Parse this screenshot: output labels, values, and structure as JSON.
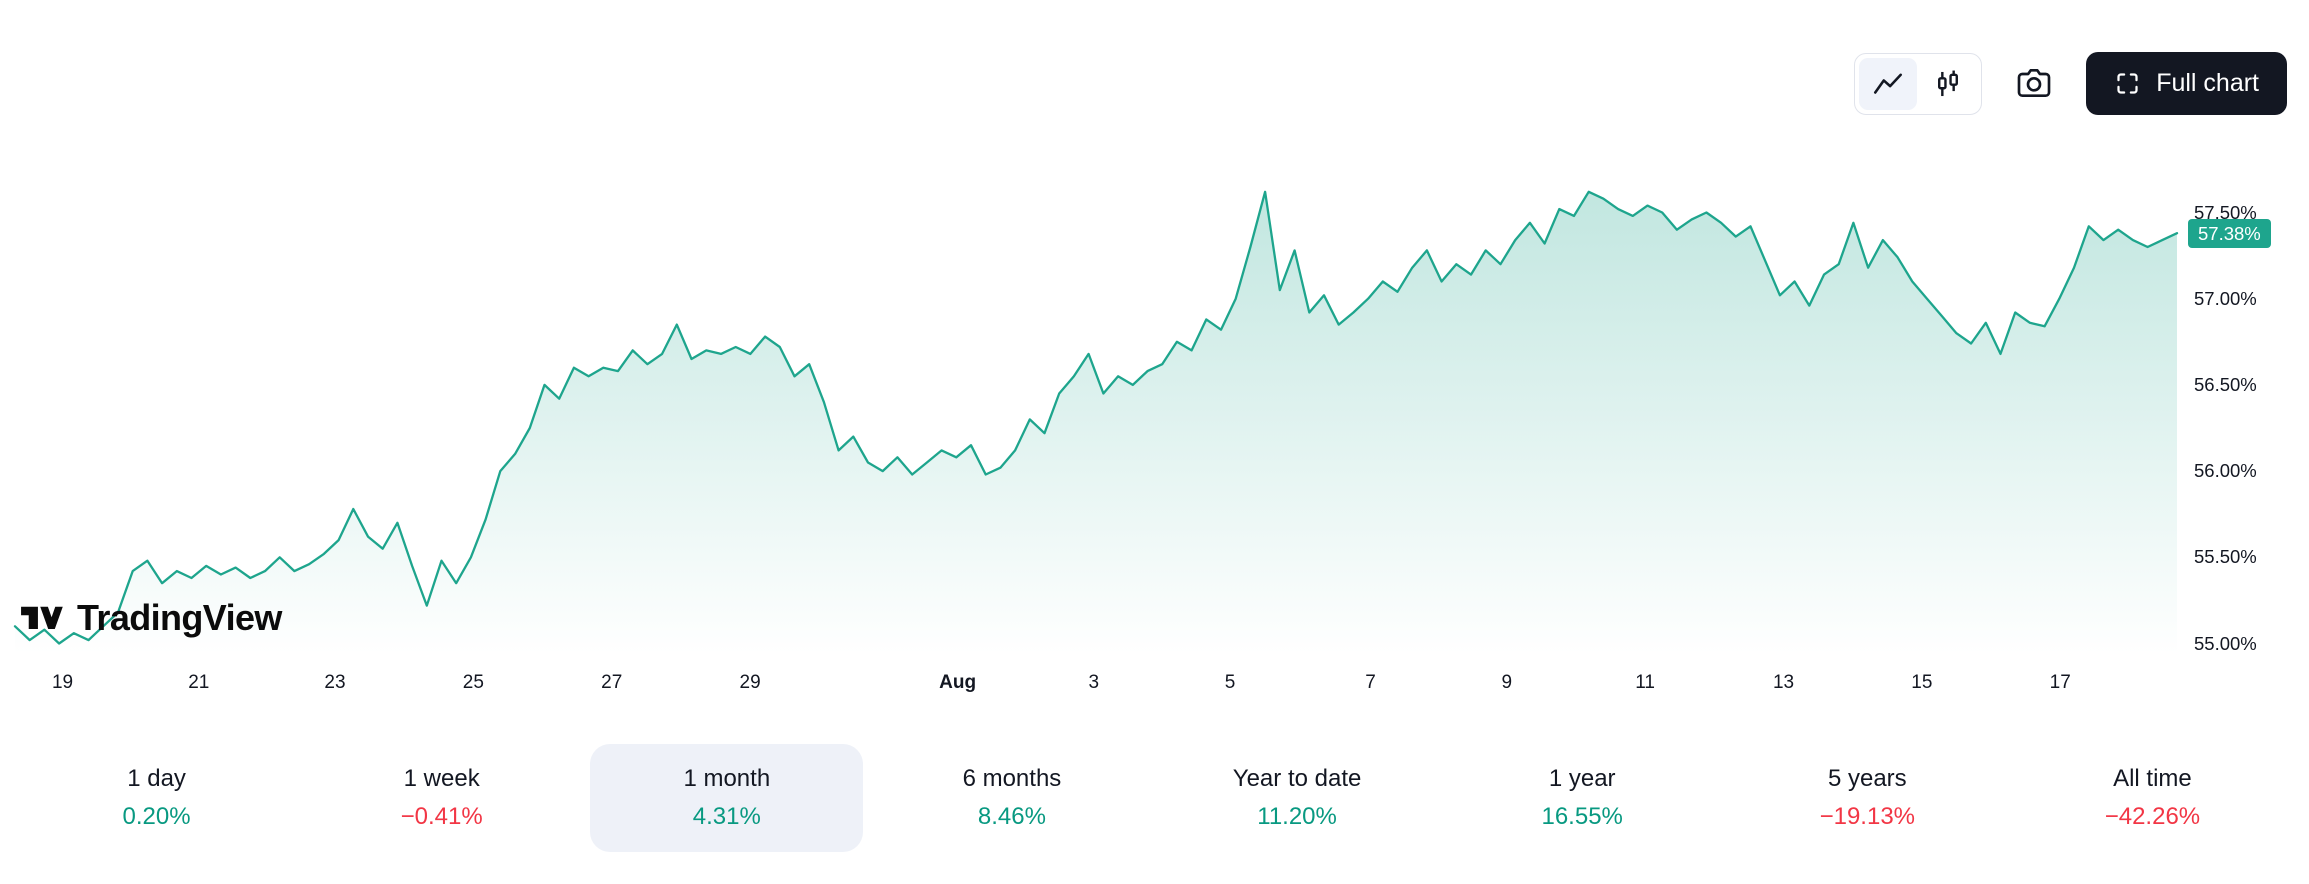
{
  "toolbar": {
    "full_chart_label": "Full chart",
    "chart_type_selected": "area"
  },
  "logo": {
    "text": "TradingView"
  },
  "colors": {
    "up": "#089981",
    "down": "#f23645",
    "line": "#1ea58d",
    "badge_bg": "#1ea58d",
    "button_dark": "#131722",
    "selected_pill": "#eef1f8",
    "border": "#e0e3eb",
    "text": "#131722"
  },
  "chart_data": {
    "type": "area",
    "title": "",
    "xlabel": "",
    "ylabel": "",
    "grid": false,
    "legend": false,
    "ylim": [
      54.95,
      57.75
    ],
    "y_ticks": [
      "57.50%",
      "57.00%",
      "56.50%",
      "56.00%",
      "55.50%",
      "55.00%"
    ],
    "y_tick_values": [
      57.5,
      57.0,
      56.5,
      56.0,
      55.5,
      55.0
    ],
    "x_ticks": [
      {
        "label": "19",
        "x": 0.022,
        "bold": false
      },
      {
        "label": "21",
        "x": 0.085,
        "bold": false
      },
      {
        "label": "23",
        "x": 0.148,
        "bold": false
      },
      {
        "label": "25",
        "x": 0.212,
        "bold": false
      },
      {
        "label": "27",
        "x": 0.276,
        "bold": false
      },
      {
        "label": "29",
        "x": 0.34,
        "bold": false
      },
      {
        "label": "Aug",
        "x": 0.436,
        "bold": true
      },
      {
        "label": "3",
        "x": 0.499,
        "bold": false
      },
      {
        "label": "5",
        "x": 0.562,
        "bold": false
      },
      {
        "label": "7",
        "x": 0.627,
        "bold": false
      },
      {
        "label": "9",
        "x": 0.69,
        "bold": false
      },
      {
        "label": "11",
        "x": 0.754,
        "bold": false
      },
      {
        "label": "13",
        "x": 0.818,
        "bold": false
      },
      {
        "label": "15",
        "x": 0.882,
        "bold": false
      },
      {
        "label": "17",
        "x": 0.946,
        "bold": false
      }
    ],
    "last_value": 57.38,
    "last_value_label": "57.38%",
    "unit": "%",
    "values": [
      55.1,
      55.02,
      55.08,
      55.0,
      55.06,
      55.02,
      55.1,
      55.18,
      55.42,
      55.48,
      55.35,
      55.42,
      55.38,
      55.45,
      55.4,
      55.44,
      55.38,
      55.42,
      55.5,
      55.42,
      55.46,
      55.52,
      55.6,
      55.78,
      55.62,
      55.55,
      55.7,
      55.45,
      55.22,
      55.48,
      55.35,
      55.5,
      55.72,
      56.0,
      56.1,
      56.25,
      56.5,
      56.42,
      56.6,
      56.55,
      56.6,
      56.58,
      56.7,
      56.62,
      56.68,
      56.85,
      56.65,
      56.7,
      56.68,
      56.72,
      56.68,
      56.78,
      56.72,
      56.55,
      56.62,
      56.4,
      56.12,
      56.2,
      56.05,
      56.0,
      56.08,
      55.98,
      56.05,
      56.12,
      56.08,
      56.15,
      55.98,
      56.02,
      56.12,
      56.3,
      56.22,
      56.45,
      56.55,
      56.68,
      56.45,
      56.55,
      56.5,
      56.58,
      56.62,
      56.75,
      56.7,
      56.88,
      56.82,
      57.0,
      57.3,
      57.62,
      57.05,
      57.28,
      56.92,
      57.02,
      56.85,
      56.92,
      57.0,
      57.1,
      57.04,
      57.18,
      57.28,
      57.1,
      57.2,
      57.14,
      57.28,
      57.2,
      57.34,
      57.44,
      57.32,
      57.52,
      57.48,
      57.62,
      57.58,
      57.52,
      57.48,
      57.54,
      57.5,
      57.4,
      57.46,
      57.5,
      57.44,
      57.36,
      57.42,
      57.22,
      57.02,
      57.1,
      56.96,
      57.14,
      57.2,
      57.44,
      57.18,
      57.34,
      57.24,
      57.1,
      57.0,
      56.9,
      56.8,
      56.74,
      56.86,
      56.68,
      56.92,
      56.86,
      56.84,
      57.0,
      57.18,
      57.42,
      57.34,
      57.4,
      57.34,
      57.3,
      57.34,
      57.38
    ]
  },
  "ranges": [
    {
      "label": "1 day",
      "value": "0.20%",
      "direction": "up",
      "selected": false
    },
    {
      "label": "1 week",
      "value": "−0.41%",
      "direction": "down",
      "selected": false
    },
    {
      "label": "1 month",
      "value": "4.31%",
      "direction": "up",
      "selected": true
    },
    {
      "label": "6 months",
      "value": "8.46%",
      "direction": "up",
      "selected": false
    },
    {
      "label": "Year to date",
      "value": "11.20%",
      "direction": "up",
      "selected": false
    },
    {
      "label": "1 year",
      "value": "16.55%",
      "direction": "up",
      "selected": false
    },
    {
      "label": "5 years",
      "value": "−19.13%",
      "direction": "down",
      "selected": false
    },
    {
      "label": "All time",
      "value": "−42.26%",
      "direction": "down",
      "selected": false
    }
  ]
}
